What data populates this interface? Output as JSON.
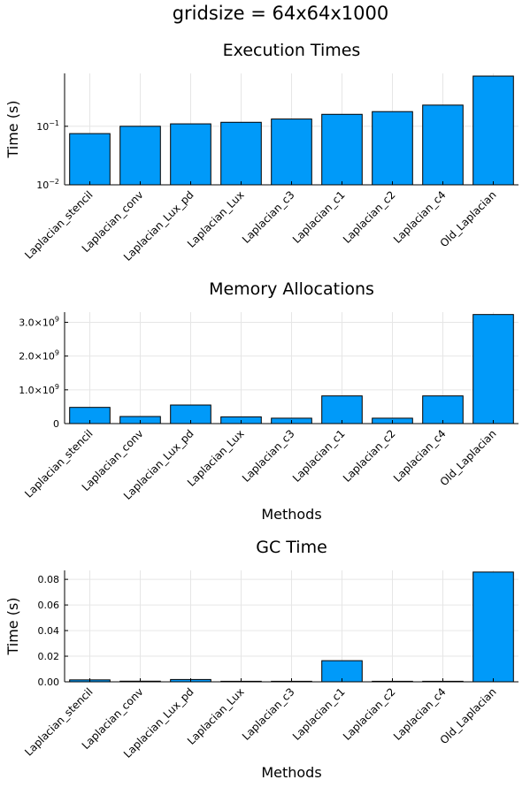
{
  "suptitle": "gridsize = 64x64x1000",
  "colors": {
    "bar": "#009af9",
    "grid": "#e6e6e6"
  },
  "chart_data": [
    {
      "type": "bar",
      "title": "Execution Times",
      "xlabel": "",
      "ylabel": "Time (s)",
      "yscale": "log10",
      "ylim": [
        0.01,
        0.8
      ],
      "yticks": [
        0.01,
        0.1
      ],
      "ytick_labels": [
        {
          "base": "10",
          "exp": "−2"
        },
        {
          "base": "10",
          "exp": "−1"
        }
      ],
      "grid": true,
      "categories": [
        "Laplacian_stencil",
        "Laplacian_conv",
        "Laplacian_Lux_pd",
        "Laplacian_Lux",
        "Laplacian_c3",
        "Laplacian_c1",
        "Laplacian_c2",
        "Laplacian_c4",
        "Old_Laplacian"
      ],
      "values": [
        0.075,
        0.1,
        0.11,
        0.117,
        0.133,
        0.16,
        0.178,
        0.23,
        0.72
      ]
    },
    {
      "type": "bar",
      "title": "Memory Allocations",
      "xlabel": "Methods",
      "ylabel": "",
      "yscale": "linear",
      "ylim": [
        0,
        3300000000
      ],
      "yticks": [
        0,
        1000000000,
        2000000000,
        3000000000
      ],
      "ytick_labels": [
        {
          "base": "0",
          "exp": ""
        },
        {
          "base": "1.0×10",
          "exp": "9"
        },
        {
          "base": "2.0×10",
          "exp": "9"
        },
        {
          "base": "3.0×10",
          "exp": "9"
        }
      ],
      "grid": true,
      "categories": [
        "Laplacian_stencil",
        "Laplacian_conv",
        "Laplacian_Lux_pd",
        "Laplacian_Lux",
        "Laplacian_c3",
        "Laplacian_c1",
        "Laplacian_c2",
        "Laplacian_c4",
        "Old_Laplacian"
      ],
      "values": [
        480000000,
        210000000,
        550000000,
        200000000,
        160000000,
        820000000,
        160000000,
        820000000,
        3230000000
      ]
    },
    {
      "type": "bar",
      "title": "GC Time",
      "xlabel": "Methods",
      "ylabel": "Time (s)",
      "yscale": "linear",
      "ylim": [
        0,
        0.087
      ],
      "yticks": [
        0,
        0.02,
        0.04,
        0.06,
        0.08
      ],
      "ytick_labels": [
        {
          "base": "0.00",
          "exp": ""
        },
        {
          "base": "0.02",
          "exp": ""
        },
        {
          "base": "0.04",
          "exp": ""
        },
        {
          "base": "0.06",
          "exp": ""
        },
        {
          "base": "0.08",
          "exp": ""
        }
      ],
      "grid": true,
      "categories": [
        "Laplacian_stencil",
        "Laplacian_conv",
        "Laplacian_Lux_pd",
        "Laplacian_Lux",
        "Laplacian_c3",
        "Laplacian_c1",
        "Laplacian_c2",
        "Laplacian_c4",
        "Old_Laplacian"
      ],
      "values": [
        0.0015,
        0.0005,
        0.0018,
        0.0001,
        0.0001,
        0.0165,
        0.0001,
        0.0001,
        0.0857
      ]
    }
  ]
}
